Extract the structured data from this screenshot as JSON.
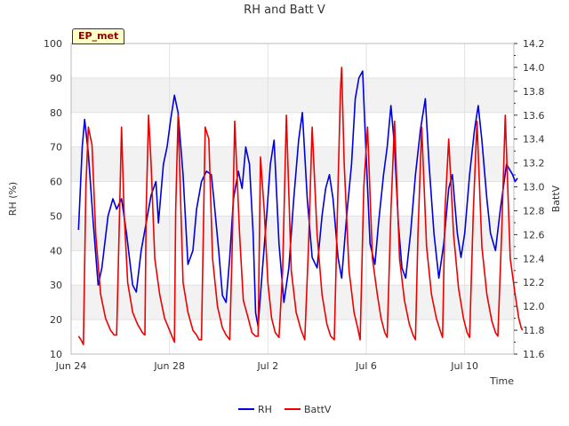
{
  "chart_data": {
    "type": "line",
    "title": "RH and Batt V",
    "xlabel": "Time",
    "ylabel": "RH (%)",
    "y2label": "BattV",
    "site_label": "EP_met",
    "x_range_days": [
      0,
      18.0
    ],
    "x_ticks": [
      {
        "label": "Jun 24",
        "day": 0
      },
      {
        "label": "Jun 28",
        "day": 4
      },
      {
        "label": "Jul 2",
        "day": 8
      },
      {
        "label": "Jul 6",
        "day": 12
      },
      {
        "label": "Jul 10",
        "day": 16
      }
    ],
    "ylim": [
      10,
      100
    ],
    "y_ticks": [
      10,
      20,
      30,
      40,
      50,
      60,
      70,
      80,
      90,
      100
    ],
    "y2lim": [
      11.6,
      14.2
    ],
    "y2_ticks": [
      "11.6",
      "11.8",
      "12.0",
      "12.2",
      "12.4",
      "12.6",
      "12.8",
      "13.0",
      "13.2",
      "13.4",
      "13.6",
      "13.8",
      "14.0",
      "14.2"
    ],
    "legend_position": "bottom-center",
    "series": [
      {
        "name": "RH",
        "color": "#0000dd",
        "axis": "left",
        "points": [
          [
            0.3,
            46
          ],
          [
            0.45,
            70
          ],
          [
            0.55,
            78
          ],
          [
            0.7,
            68
          ],
          [
            0.9,
            48
          ],
          [
            1.1,
            30
          ],
          [
            1.25,
            35
          ],
          [
            1.5,
            50
          ],
          [
            1.7,
            55
          ],
          [
            1.85,
            52
          ],
          [
            2.05,
            55
          ],
          [
            2.25,
            45
          ],
          [
            2.5,
            30
          ],
          [
            2.65,
            28
          ],
          [
            2.85,
            40
          ],
          [
            3.05,
            48
          ],
          [
            3.25,
            56
          ],
          [
            3.45,
            60
          ],
          [
            3.55,
            48
          ],
          [
            3.75,
            65
          ],
          [
            3.9,
            70
          ],
          [
            4.05,
            78
          ],
          [
            4.2,
            85
          ],
          [
            4.35,
            80
          ],
          [
            4.55,
            62
          ],
          [
            4.75,
            36
          ],
          [
            4.95,
            40
          ],
          [
            5.1,
            52
          ],
          [
            5.3,
            60
          ],
          [
            5.5,
            63
          ],
          [
            5.7,
            62
          ],
          [
            5.8,
            55
          ],
          [
            6.0,
            40
          ],
          [
            6.15,
            27
          ],
          [
            6.3,
            25
          ],
          [
            6.45,
            38
          ],
          [
            6.6,
            55
          ],
          [
            6.8,
            63
          ],
          [
            6.95,
            58
          ],
          [
            7.1,
            70
          ],
          [
            7.25,
            65
          ],
          [
            7.4,
            45
          ],
          [
            7.5,
            22
          ],
          [
            7.6,
            18
          ],
          [
            7.75,
            32
          ],
          [
            7.95,
            50
          ],
          [
            8.1,
            65
          ],
          [
            8.25,
            72
          ],
          [
            8.45,
            42
          ],
          [
            8.65,
            25
          ],
          [
            8.85,
            35
          ],
          [
            9.05,
            55
          ],
          [
            9.25,
            72
          ],
          [
            9.4,
            80
          ],
          [
            9.6,
            55
          ],
          [
            9.8,
            38
          ],
          [
            10.0,
            35
          ],
          [
            10.2,
            50
          ],
          [
            10.35,
            58
          ],
          [
            10.5,
            62
          ],
          [
            10.65,
            55
          ],
          [
            10.85,
            38
          ],
          [
            11.0,
            32
          ],
          [
            11.2,
            50
          ],
          [
            11.4,
            65
          ],
          [
            11.55,
            84
          ],
          [
            11.7,
            90
          ],
          [
            11.85,
            92
          ],
          [
            11.95,
            75
          ],
          [
            12.15,
            42
          ],
          [
            12.35,
            36
          ],
          [
            12.5,
            48
          ],
          [
            12.7,
            62
          ],
          [
            12.85,
            70
          ],
          [
            13.0,
            82
          ],
          [
            13.15,
            70
          ],
          [
            13.3,
            48
          ],
          [
            13.45,
            35
          ],
          [
            13.6,
            32
          ],
          [
            13.8,
            45
          ],
          [
            14.0,
            62
          ],
          [
            14.2,
            75
          ],
          [
            14.4,
            84
          ],
          [
            14.55,
            65
          ],
          [
            14.75,
            45
          ],
          [
            14.95,
            32
          ],
          [
            15.15,
            42
          ],
          [
            15.35,
            58
          ],
          [
            15.5,
            62
          ],
          [
            15.7,
            45
          ],
          [
            15.85,
            38
          ],
          [
            16.0,
            45
          ],
          [
            16.2,
            62
          ],
          [
            16.4,
            75
          ],
          [
            16.55,
            82
          ],
          [
            16.7,
            72
          ],
          [
            16.9,
            55
          ],
          [
            17.05,
            45
          ],
          [
            17.25,
            40
          ],
          [
            17.45,
            52
          ],
          [
            17.7,
            65
          ],
          [
            17.95,
            62
          ],
          [
            18.05,
            60
          ],
          [
            18.15,
            61
          ]
        ]
      },
      {
        "name": "BattV",
        "color": "#ee0000",
        "axis": "right",
        "points": [
          [
            0.3,
            11.75
          ],
          [
            0.4,
            11.72
          ],
          [
            0.5,
            11.68
          ],
          [
            0.6,
            13.0
          ],
          [
            0.7,
            13.5
          ],
          [
            0.85,
            13.35
          ],
          [
            1.0,
            12.6
          ],
          [
            1.2,
            12.1
          ],
          [
            1.4,
            11.9
          ],
          [
            1.6,
            11.8
          ],
          [
            1.75,
            11.76
          ],
          [
            1.85,
            11.76
          ],
          [
            1.95,
            12.6
          ],
          [
            2.05,
            13.5
          ],
          [
            2.15,
            12.8
          ],
          [
            2.3,
            12.2
          ],
          [
            2.5,
            11.95
          ],
          [
            2.7,
            11.85
          ],
          [
            2.9,
            11.78
          ],
          [
            3.0,
            11.76
          ],
          [
            3.05,
            12.8
          ],
          [
            3.15,
            13.6
          ],
          [
            3.25,
            13.2
          ],
          [
            3.4,
            12.4
          ],
          [
            3.6,
            12.1
          ],
          [
            3.8,
            11.9
          ],
          [
            4.0,
            11.8
          ],
          [
            4.1,
            11.75
          ],
          [
            4.2,
            11.7
          ],
          [
            4.25,
            12.8
          ],
          [
            4.35,
            13.6
          ],
          [
            4.55,
            12.2
          ],
          [
            4.75,
            11.95
          ],
          [
            4.95,
            11.8
          ],
          [
            5.1,
            11.76
          ],
          [
            5.2,
            11.72
          ],
          [
            5.3,
            11.72
          ],
          [
            5.45,
            13.5
          ],
          [
            5.6,
            13.4
          ],
          [
            5.75,
            12.4
          ],
          [
            5.95,
            12.0
          ],
          [
            6.15,
            11.82
          ],
          [
            6.3,
            11.76
          ],
          [
            6.45,
            11.72
          ],
          [
            6.55,
            12.5
          ],
          [
            6.65,
            13.55
          ],
          [
            6.85,
            12.6
          ],
          [
            7.0,
            12.05
          ],
          [
            7.2,
            11.9
          ],
          [
            7.35,
            11.78
          ],
          [
            7.5,
            11.75
          ],
          [
            7.6,
            11.75
          ],
          [
            7.7,
            13.25
          ],
          [
            7.85,
            12.8
          ],
          [
            8.0,
            12.2
          ],
          [
            8.15,
            11.9
          ],
          [
            8.3,
            11.78
          ],
          [
            8.45,
            11.74
          ],
          [
            8.6,
            12.3
          ],
          [
            8.75,
            13.6
          ],
          [
            8.95,
            12.3
          ],
          [
            9.15,
            11.95
          ],
          [
            9.35,
            11.8
          ],
          [
            9.5,
            11.72
          ],
          [
            9.65,
            12.5
          ],
          [
            9.8,
            13.5
          ],
          [
            10.0,
            12.6
          ],
          [
            10.2,
            12.1
          ],
          [
            10.4,
            11.85
          ],
          [
            10.55,
            11.75
          ],
          [
            10.7,
            11.72
          ],
          [
            10.85,
            13.0
          ],
          [
            10.95,
            13.8
          ],
          [
            11.0,
            14.0
          ],
          [
            11.1,
            13.2
          ],
          [
            11.3,
            12.3
          ],
          [
            11.5,
            11.95
          ],
          [
            11.65,
            11.82
          ],
          [
            11.75,
            11.72
          ],
          [
            11.9,
            13.0
          ],
          [
            12.05,
            13.5
          ],
          [
            12.25,
            12.4
          ],
          [
            12.45,
            12.1
          ],
          [
            12.6,
            11.9
          ],
          [
            12.75,
            11.78
          ],
          [
            12.85,
            11.74
          ],
          [
            13.0,
            12.8
          ],
          [
            13.15,
            13.55
          ],
          [
            13.35,
            12.4
          ],
          [
            13.55,
            12.05
          ],
          [
            13.75,
            11.85
          ],
          [
            13.9,
            11.76
          ],
          [
            14.0,
            11.72
          ],
          [
            14.1,
            12.6
          ],
          [
            14.25,
            13.5
          ],
          [
            14.45,
            12.5
          ],
          [
            14.65,
            12.1
          ],
          [
            14.85,
            11.9
          ],
          [
            15.0,
            11.8
          ],
          [
            15.1,
            11.74
          ],
          [
            15.2,
            12.8
          ],
          [
            15.35,
            13.4
          ],
          [
            15.55,
            12.6
          ],
          [
            15.75,
            12.15
          ],
          [
            15.95,
            11.9
          ],
          [
            16.1,
            11.78
          ],
          [
            16.2,
            11.74
          ],
          [
            16.35,
            12.8
          ],
          [
            16.5,
            13.55
          ],
          [
            16.7,
            12.5
          ],
          [
            16.9,
            12.1
          ],
          [
            17.1,
            11.88
          ],
          [
            17.25,
            11.78
          ],
          [
            17.35,
            11.75
          ],
          [
            17.5,
            12.6
          ],
          [
            17.65,
            13.6
          ],
          [
            17.85,
            12.4
          ],
          [
            18.05,
            12.1
          ],
          [
            18.2,
            11.9
          ],
          [
            18.3,
            11.82
          ],
          [
            18.35,
            11.8
          ]
        ]
      }
    ]
  }
}
